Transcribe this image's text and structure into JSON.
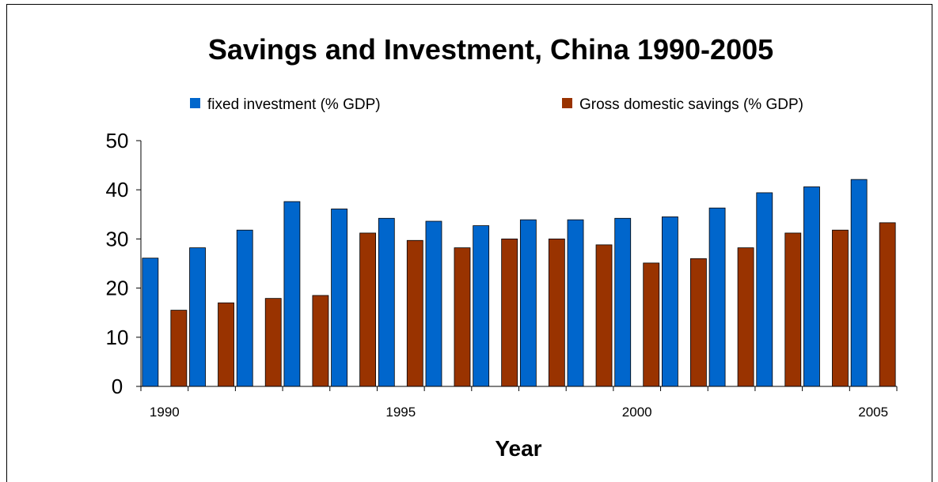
{
  "chart_data": {
    "type": "bar",
    "title": "Savings and Investment, China 1990-2005",
    "xlabel": "Year",
    "ylabel": "",
    "ylim": [
      0,
      50
    ],
    "yticks": [
      "0",
      "10",
      "20",
      "30",
      "40",
      "50"
    ],
    "categories": [
      "1990",
      "1991",
      "1992",
      "1993",
      "1994",
      "1995",
      "1996",
      "1997",
      "1998",
      "1999",
      "2000",
      "2001",
      "2002",
      "2003",
      "2004",
      "2005"
    ],
    "xtick_labels": [
      "1990",
      "",
      "",
      "",
      "",
      "1995",
      "",
      "",
      "",
      "",
      "2000",
      "",
      "",
      "",
      "",
      "2005"
    ],
    "grid": false,
    "legend_position": "top",
    "series": [
      {
        "name": "fixed investment (% GDP)",
        "color": "#0066cc",
        "values": [
          26.1,
          28.2,
          31.8,
          37.6,
          36.1,
          34.2,
          33.6,
          32.7,
          33.9,
          33.9,
          34.2,
          34.5,
          36.3,
          39.4,
          40.6,
          42.1
        ]
      },
      {
        "name": "Gross domestic savings (% GDP)",
        "color": "#993300",
        "values": [
          15.5,
          17.0,
          17.9,
          18.5,
          31.2,
          29.7,
          28.2,
          30.0,
          30.0,
          28.8,
          25.1,
          26.0,
          28.2,
          31.2,
          31.8,
          33.3
        ]
      }
    ]
  }
}
